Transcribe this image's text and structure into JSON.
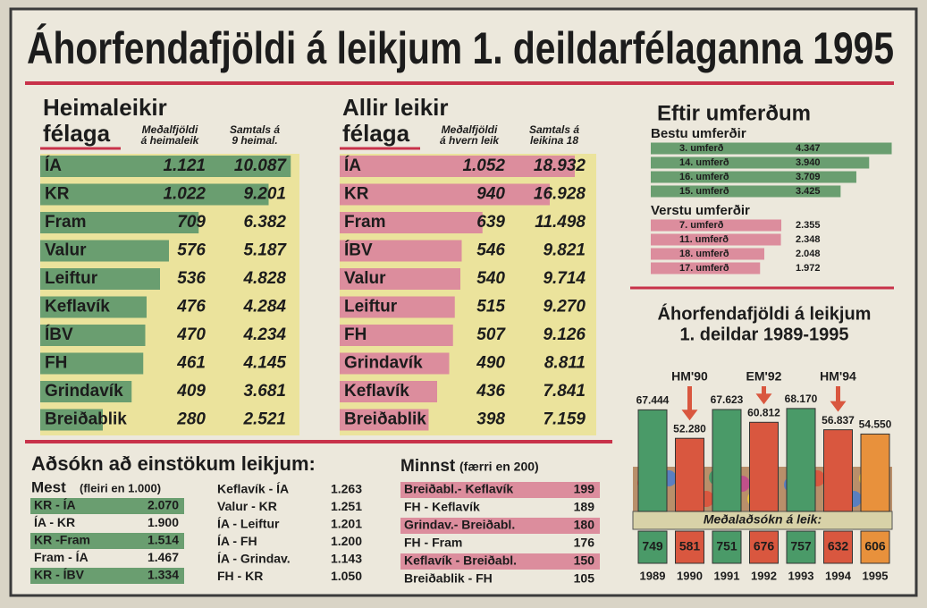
{
  "title": "Áhorfendafjöldi á leikjum 1. deildarfélaganna 1995",
  "home": {
    "heading": "Heimaleikir",
    "heading2": "félaga",
    "col_avg": [
      "Meðalfjöldi",
      "á heimaleik"
    ],
    "col_total": [
      "Samtals á",
      "9 heimal."
    ],
    "rows": [
      {
        "team": "ÍA",
        "avg": {
          "value": 1121,
          "label": "1.121"
        },
        "total": {
          "value": 10087,
          "label": "10.087"
        }
      },
      {
        "team": "KR",
        "avg": {
          "value": 1022,
          "label": "1.022"
        },
        "total": {
          "value": 9201,
          "label": "9.201"
        }
      },
      {
        "team": "Fram",
        "avg": 709,
        "total": {
          "value": 6382,
          "label": "6.382"
        }
      },
      {
        "team": "Valur",
        "avg": 576,
        "total": {
          "value": 5187,
          "label": "5.187"
        }
      },
      {
        "team": "Leiftur",
        "avg": 536,
        "total": {
          "value": 4828,
          "label": "4.828"
        }
      },
      {
        "team": "Keflavík",
        "avg": 476,
        "total": {
          "value": 4284,
          "label": "4.284"
        }
      },
      {
        "team": "ÍBV",
        "avg": 470,
        "total": {
          "value": 4234,
          "label": "4.234"
        }
      },
      {
        "team": "FH",
        "avg": 461,
        "total": {
          "value": 4145,
          "label": "4.145"
        }
      },
      {
        "team": "Grindavík",
        "avg": 409,
        "total": {
          "value": 3681,
          "label": "3.681"
        }
      },
      {
        "team": "Breiðablik",
        "avg": 280,
        "total": {
          "value": 2521,
          "label": "2.521"
        }
      }
    ]
  },
  "all": {
    "heading": "Allir leikir",
    "heading2": "félaga",
    "col_avg": [
      "Meðalfjöldi",
      "á hvern leik"
    ],
    "col_total": [
      "Samtals á",
      "leikina 18"
    ],
    "rows": [
      {
        "team": "ÍA",
        "avg": {
          "value": 1052,
          "label": "1.052"
        },
        "total": {
          "value": 18932,
          "label": "18.932"
        }
      },
      {
        "team": "KR",
        "avg": 940,
        "total": {
          "value": 16928,
          "label": "16.928"
        }
      },
      {
        "team": "Fram",
        "avg": 639,
        "total": {
          "value": 11498,
          "label": "11.498"
        }
      },
      {
        "team": "ÍBV",
        "avg": 546,
        "total": {
          "value": 9821,
          "label": "9.821"
        }
      },
      {
        "team": "Valur",
        "avg": 540,
        "total": {
          "value": 9714,
          "label": "9.714"
        }
      },
      {
        "team": "Leiftur",
        "avg": 515,
        "total": {
          "value": 9270,
          "label": "9.270"
        }
      },
      {
        "team": "FH",
        "avg": 507,
        "total": {
          "value": 9126,
          "label": "9.126"
        }
      },
      {
        "team": "Grindavík",
        "avg": 490,
        "total": {
          "value": 8811,
          "label": "8.811"
        }
      },
      {
        "team": "Keflavík",
        "avg": 436,
        "total": {
          "value": 7841,
          "label": "7.841"
        }
      },
      {
        "team": "Breiðablik",
        "avg": 398,
        "total": {
          "value": 7159,
          "label": "7.159"
        }
      }
    ]
  },
  "rounds": {
    "heading": "Eftir umferðum",
    "best_heading": "Bestu umferðir",
    "best": [
      {
        "round": "3. umferð",
        "value": {
          "value": 4347,
          "label": "4.347"
        }
      },
      {
        "round": "14. umferð",
        "value": {
          "value": 3940,
          "label": "3.940"
        }
      },
      {
        "round": "16. umferð",
        "value": {
          "value": 3709,
          "label": "3.709"
        }
      },
      {
        "round": "15. umferð",
        "value": {
          "value": 3425,
          "label": "3.425"
        }
      }
    ],
    "worst_heading": "Verstu umferðir",
    "worst": [
      {
        "round": "7. umferð",
        "value": {
          "value": 2355,
          "label": "2.355"
        }
      },
      {
        "round": "11. umferð",
        "value": {
          "value": 2348,
          "label": "2.348"
        }
      },
      {
        "round": "18. umferð",
        "value": {
          "value": 2048,
          "label": "2.048"
        }
      },
      {
        "round": "17. umferð",
        "value": {
          "value": 1972,
          "label": "1.972"
        }
      }
    ]
  },
  "matches": {
    "heading": "Aðsókn að einstökum leikjum:",
    "most_heading": "Mest",
    "most_note": "(fleiri en 1.000)",
    "most_col1": [
      [
        "KR - ÍA",
        "2.070"
      ],
      [
        "ÍA - KR",
        "1.900"
      ],
      [
        "KR -Fram",
        "1.514"
      ],
      [
        "Fram - ÍA",
        "1.467"
      ],
      [
        "KR - ÍBV",
        "1.334"
      ]
    ],
    "most_col2": [
      [
        "Keflavík - ÍA",
        "1.263"
      ],
      [
        "Valur - KR",
        "1.251"
      ],
      [
        "ÍA - Leiftur",
        "1.201"
      ],
      [
        "ÍA - FH",
        "1.200"
      ],
      [
        "ÍA - Grindav.",
        "1.143"
      ],
      [
        "FH - KR",
        "1.050"
      ]
    ],
    "least_heading": "Minnst",
    "least_note": "(færri en 200)",
    "least": [
      [
        "Breiðabl.- Keflavík",
        "199"
      ],
      [
        "FH - Keflavík",
        "189"
      ],
      [
        "Grindav.- Breiðabl.",
        "180"
      ],
      [
        "FH - Fram",
        "176"
      ],
      [
        "Keflavík - Breiðabl.",
        "150"
      ],
      [
        "Breiðablik - FH",
        "105"
      ]
    ]
  },
  "chart_data": {
    "type": "bar",
    "title": "Áhorfendafjöldi á leikjum",
    "subtitle": "1. deildar 1989-1995",
    "categories": [
      "1989",
      "1990",
      "1991",
      "1992",
      "1993",
      "1994",
      "1995"
    ],
    "values": [
      67444,
      52280,
      67623,
      60812,
      68170,
      56837,
      54550
    ],
    "value_labels": [
      "67.444",
      "52.280",
      "67.623",
      "60.812",
      "68.170",
      "56.837",
      "54.550"
    ],
    "colors": [
      "#4a9a68",
      "#d9573f",
      "#4a9a68",
      "#d9573f",
      "#4a9a68",
      "#d9573f",
      "#e8913c"
    ],
    "ylim": [
      0,
      70000
    ],
    "averages_label": "Meðalaðsókn á leik:",
    "averages": [
      749,
      581,
      751,
      676,
      757,
      632,
      606
    ],
    "annotations": [
      {
        "label": "HM'90",
        "category": "1990"
      },
      {
        "label": "EM'92",
        "category": "1992"
      },
      {
        "label": "HM'94",
        "category": "1994"
      }
    ]
  }
}
